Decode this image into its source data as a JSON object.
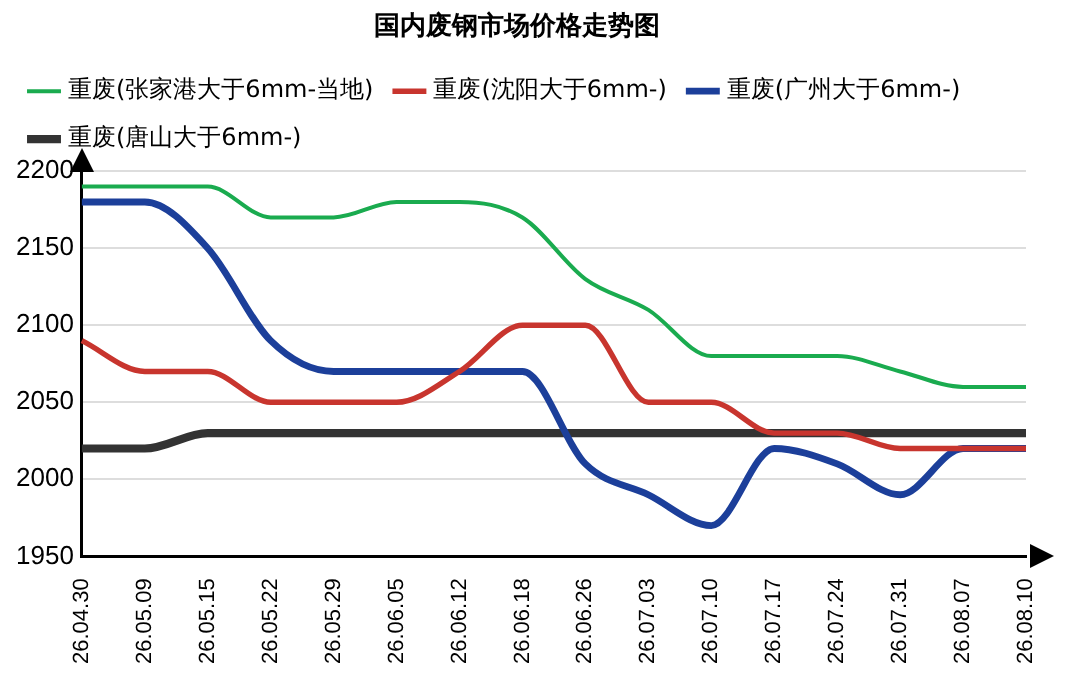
{
  "chart_data": {
    "type": "line",
    "title": "国内废钢市场价格走势图",
    "categories": [
      "26.04.30",
      "26.05.09",
      "26.05.15",
      "26.05.22",
      "26.05.29",
      "26.06.05",
      "26.06.12",
      "26.06.18",
      "26.06.26",
      "26.07.03",
      "26.07.10",
      "26.07.17",
      "26.07.24",
      "26.07.31",
      "26.08.07",
      "26.08.10"
    ],
    "series": [
      {
        "name": "重废(张家港大于6mm-当地)",
        "color": "#1aab4f",
        "values": [
          2190,
          2190,
          2190,
          2170,
          2170,
          2180,
          2180,
          2170,
          2130,
          2110,
          2080,
          2080,
          2080,
          2070,
          2060,
          2060
        ]
      },
      {
        "name": "重废(沈阳大于6mm-)",
        "color": "#c8352e",
        "values": [
          2090,
          2070,
          2070,
          2050,
          2050,
          2050,
          2070,
          2100,
          2100,
          2050,
          2050,
          2030,
          2030,
          2020,
          2020,
          2020
        ]
      },
      {
        "name": "重废(广州大于6mm-)",
        "color": "#1c3f9a",
        "values": [
          2180,
          2180,
          2150,
          2090,
          2070,
          2070,
          2070,
          2070,
          2010,
          1990,
          1970,
          2020,
          2010,
          1990,
          2020,
          2020
        ]
      },
      {
        "name": "重废(唐山大于6mm-)",
        "color": "#333333",
        "values": [
          2020,
          2020,
          2030,
          2030,
          2030,
          2030,
          2030,
          2030,
          2030,
          2030,
          2030,
          2030,
          2030,
          2030,
          2030,
          2030
        ]
      }
    ],
    "ylim": [
      1950,
      2200
    ],
    "yticks": [
      1950,
      2000,
      2050,
      2100,
      2150,
      2200
    ],
    "grid": "y",
    "legend": "top",
    "marker": "none",
    "line_style": "solid"
  }
}
